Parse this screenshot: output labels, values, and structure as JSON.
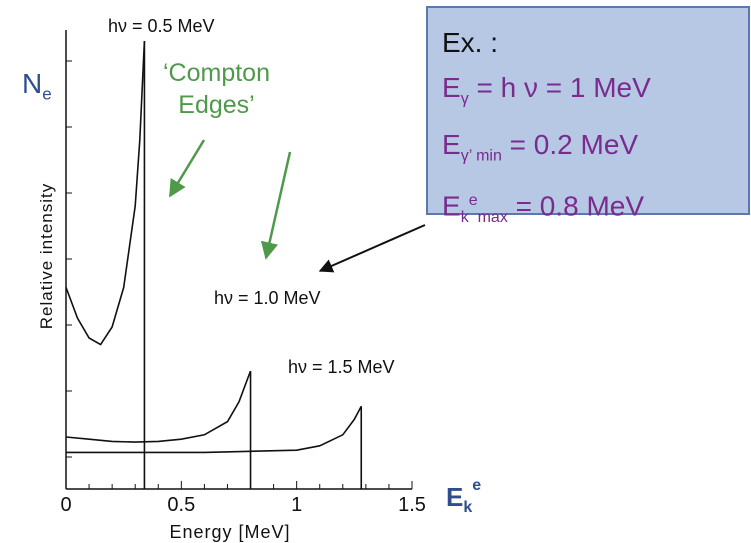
{
  "chart_data": {
    "type": "line",
    "title": "",
    "xlabel": "Energy [MeV]",
    "ylabel": "Relative intensity",
    "xlim": [
      0,
      1.5
    ],
    "xticks": [
      "0",
      "0.5",
      "1",
      "1.5"
    ],
    "series": [
      {
        "name": "hν = 0.5 MeV",
        "x": [
          0,
          0.05,
          0.1,
          0.15,
          0.2,
          0.25,
          0.3,
          0.32,
          0.34
        ],
        "y": [
          0.78,
          0.64,
          0.55,
          0.52,
          0.6,
          0.78,
          1.15,
          1.45,
          1.9
        ],
        "compton_edge": 0.34
      },
      {
        "name": "hν = 1.0 MeV",
        "x": [
          0,
          0.1,
          0.2,
          0.3,
          0.4,
          0.5,
          0.6,
          0.7,
          0.75,
          0.8
        ],
        "y": [
          0.1,
          0.09,
          0.08,
          0.077,
          0.08,
          0.09,
          0.11,
          0.17,
          0.26,
          0.4
        ],
        "compton_edge": 0.8
      },
      {
        "name": "hν = 1.5 MeV",
        "x": [
          0,
          0.2,
          0.4,
          0.6,
          0.8,
          1.0,
          1.1,
          1.2,
          1.25,
          1.28
        ],
        "y": [
          0.03,
          0.03,
          0.03,
          0.03,
          0.035,
          0.04,
          0.06,
          0.11,
          0.18,
          0.24
        ],
        "compton_edge": 1.28
      }
    ],
    "annotations": [
      "hν = 0.5 MeV",
      "hν = 1.0 MeV",
      "hν = 1.5 MeV",
      "‘Compton Edges’"
    ]
  },
  "labels": {
    "ne": "N",
    "ne_sub": "e",
    "ek": "E",
    "ek_sub": "k",
    "ek_sup": "e",
    "compton_line1": "‘Compton",
    "compton_line2": "Edges’"
  },
  "example_box": {
    "title": "Ex. :",
    "line1": {
      "base": "E",
      "sub": "γ",
      "rest": " = h ν = 1 MeV"
    },
    "line2": {
      "base": "E",
      "sub": "γ’ min",
      "rest": " =  0.2 MeV"
    },
    "line3": {
      "base": "E",
      "sub": "k",
      "sup": "e",
      "sub2": "max",
      "rest": " = 0.8 MeV"
    }
  },
  "colors": {
    "curve": "#111111",
    "label_blue": "#2e4f8f",
    "label_green": "#4f9a4a",
    "box_fill": "#b7c8e4",
    "box_text": "#7a2b8e"
  }
}
